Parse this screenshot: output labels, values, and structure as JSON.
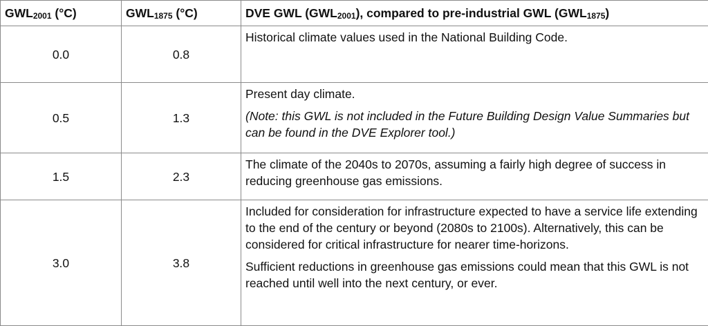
{
  "table": {
    "header": [
      [
        {
          "text": "GWL"
        },
        {
          "sub": "2001"
        },
        {
          "text": " (°C)"
        }
      ],
      [
        {
          "text": "GWL"
        },
        {
          "sub": "1875"
        },
        {
          "text": " (°C)"
        }
      ],
      [
        {
          "text": "DVE GWL (GWL"
        },
        {
          "sub": "2001"
        },
        {
          "text": "), compared to pre-industrial GWL (GWL"
        },
        {
          "sub": "1875"
        },
        {
          "text": ")"
        }
      ]
    ],
    "rows": [
      {
        "gwl2001": "0.0",
        "gwl1875": "0.8",
        "description": [
          {
            "text": "Historical climate values used in the National Building Code."
          }
        ]
      },
      {
        "gwl2001": "0.5",
        "gwl1875": "1.3",
        "description": [
          {
            "text": "Present day climate."
          },
          {
            "text": "(Note: this GWL is not included in the Future Building Design Value Summaries but can be found in the DVE Explorer tool.)",
            "italic": true
          }
        ]
      },
      {
        "gwl2001": "1.5",
        "gwl1875": "2.3",
        "description": [
          {
            "text": "The climate of the 2040s to 2070s, assuming a fairly high degree of success in reducing greenhouse gas emissions."
          }
        ]
      },
      {
        "gwl2001": "3.0",
        "gwl1875": "3.8",
        "description": [
          {
            "text": "Included for consideration for infrastructure expected to have a service life extending to the end of the century or beyond (2080s to 2100s). Alternatively, this can be considered for critical infrastructure for nearer time-horizons."
          },
          {
            "text": "Sufficient reductions in greenhouse gas emissions could mean that this GWL is not reached until well into the next century, or ever."
          }
        ]
      }
    ]
  }
}
